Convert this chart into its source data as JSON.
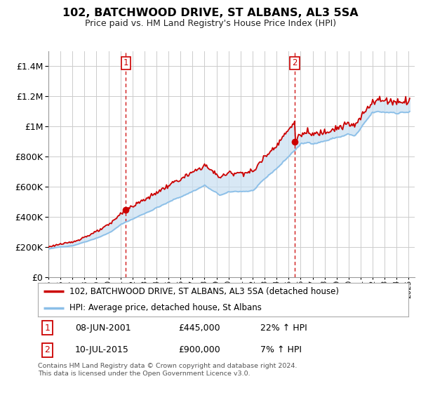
{
  "title": "102, BATCHWOOD DRIVE, ST ALBANS, AL3 5SA",
  "subtitle": "Price paid vs. HM Land Registry's House Price Index (HPI)",
  "legend_line1": "102, BATCHWOOD DRIVE, ST ALBANS, AL3 5SA (detached house)",
  "legend_line2": "HPI: Average price, detached house, St Albans",
  "sale1_label": "1",
  "sale1_date": "08-JUN-2001",
  "sale1_price": "£445,000",
  "sale1_hpi": "22% ↑ HPI",
  "sale2_label": "2",
  "sale2_date": "10-JUL-2015",
  "sale2_price": "£900,000",
  "sale2_hpi": "7% ↑ HPI",
  "footer": "Contains HM Land Registry data © Crown copyright and database right 2024.\nThis data is licensed under the Open Government Licence v3.0.",
  "hpi_color": "#8bbfe8",
  "price_color": "#cc0000",
  "fill_color": "#c8dff2",
  "sale_marker_color": "#cc0000",
  "vline_color": "#cc0000",
  "background_color": "#ffffff",
  "grid_color": "#cccccc",
  "sale1_year": 2001.44,
  "sale2_year": 2015.52,
  "ylim_min": 0,
  "ylim_max": 1500000,
  "xlim_min": 1995,
  "xlim_max": 2025.5
}
